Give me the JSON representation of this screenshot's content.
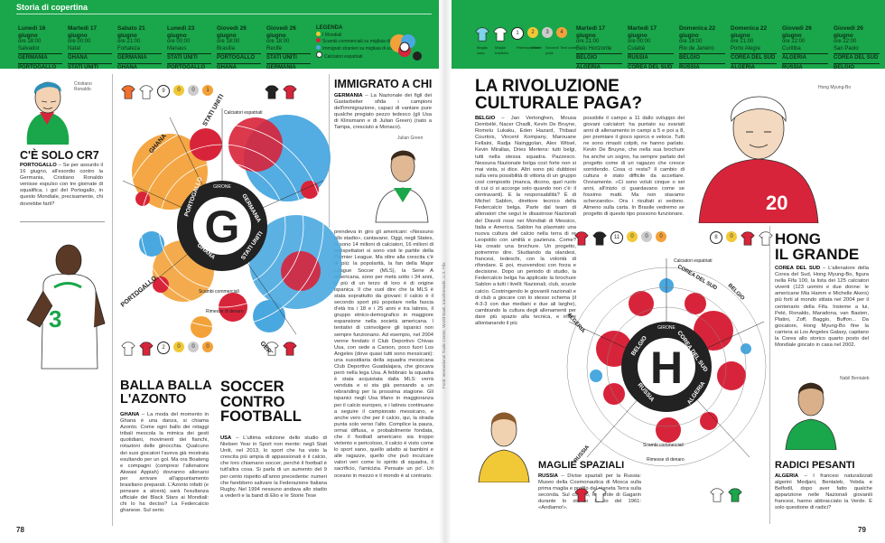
{
  "left_page": {
    "section": "Storia di copertina",
    "schedule": [
      {
        "date": "Lunedì 16 giugno",
        "time": "ore 18:00",
        "city": "Salvador",
        "team1": "GERMANIA",
        "team2": "PORTOGALLO"
      },
      {
        "date": "Martedì 17 giugno",
        "time": "ore 00:00",
        "city": "Natal",
        "team1": "GHANA",
        "team2": "STATI UNITI"
      },
      {
        "date": "Sabato 21 giugno",
        "time": "ore 21:00",
        "city": "Fortaleza",
        "team1": "GERMANIA",
        "team2": "GHANA"
      },
      {
        "date": "Lunedì 23 giugno",
        "time": "ore 00:00",
        "city": "Manaus",
        "team1": "STATI UNITI",
        "team2": "PORTOGALLO"
      },
      {
        "date": "Giovedì 26 giugno",
        "time": "ore 18:00",
        "city": "Brasília",
        "team1": "PORTOGALLO",
        "team2": "GHANA"
      },
      {
        "date": "Giovedì 26 giugno",
        "time": "ore 18:00",
        "city": "Recife",
        "team1": "STATI UNITI",
        "team2": "GERMANIA"
      }
    ],
    "legend": {
      "title": "LEGENDA",
      "items": [
        "I Mondiali",
        "Scambi commerciali su migliaia di euro",
        "Immigrati stranieri su migliaia di euro",
        "Calciatori espatriati"
      ]
    },
    "group": {
      "letter": "G",
      "ring_label": "GIRONE",
      "teams": [
        "PORTOGALLO",
        "GERMANIA",
        "STATI UNITI",
        "GHANA"
      ]
    },
    "chart_labels": {
      "spokes": [
        "STATI UNITI",
        "GHANA",
        "PORTOGALLO",
        "GERMANIA"
      ],
      "rings": [
        "Calciatori espatriati",
        "Scambi commerciali",
        "Rimesse di denaro"
      ]
    },
    "cr7": {
      "photo_label": "Cristiano Ronaldo",
      "title": "C'È SOLO CR7",
      "kicker": "PORTOGALLO",
      "text": "– Se per assurdo il 16 giugno, all'esordio contro la Germania, Cristiano Ronaldo venisse espulso con tre giornate di squalifica, i gol del Portogallo, in questo Mondiale, precisamente, chi dovrebbe farli?"
    },
    "immigrati": {
      "title": "IMMIGRATO A CHI",
      "kicker": "GERMANIA",
      "text": "– La Nazionale dei figli dei Gastarbeiter sfida i campioni dell'immigrazione, capaci di vantare pure qualche pregiato pezzo tedesco (gli Usa di Klinsmann e di Julian Green) (nato a Tampa, cresciuto a Monaco).",
      "photo_label": "Julian Green"
    },
    "soccer_col": {
      "text": "prendeva in giro gli americani: «Nessuno allo stadio», cantavano. Oggi, negli States, ci sono 14 milioni di calciatori, 16 milioni di telespettatori si sono visti le partite della Premier League. Ma oltre alla crescita c'è di più: la popolarità, la fan della Major League Soccer (MLS), la Serie A americana, sono per metà sotto i 34 anni, e più di un terzo di loro è di origine ispanica. Il che vuol dire che la MLS è stata soprattutto da giovani: il calcio è il secondo sport più popolare nella fascia d'età tra i 18 e i 25 anni e tra latinos, il gruppo etnico-demografico in maggiore espansione nella società americana. I tentativi di coinvolgere gli ispanici non sempre funzionano. Ad esempio, nel 2004 venne fondato il Club Deportivo Chivas Usa, con sede a Carson, poco fuori Los Angeles (dove quasi tutti sono messicani): una sussidiaria della squadra messicana Club Deportivo Guadalajara, che giocava però nella lega Usa. A febbraio la squadra è stata acquistata dalla MLS: verrà venduta e si sta già pensando a un rebranding per la prossima stagione. Gli ispanici negli Usa tifano in maggioranza per il calcio europeo, e i latinos continuano a seguire il campionato messicano, e anche vero che per il calcio, qui, la strada punta solo verso l'alto. Complice la paura, ormai diffusa, e probabilmente fondata, che il football americano sia troppo violento e pericoloso, il calcio è visto come lo sport sano, quello adatto ai bambini e alle ragazze, quello che può inculcare valori veri come lo spirito di squadra, il sacrificio, l'amicizia. Pensate un po'. Un oceano in mezzo e il mondo è al contrario."
    },
    "azonto": {
      "title_line1": "BALLA BALLA",
      "title_line2": "L'AZONTO",
      "kicker": "GHANA",
      "text": "– La moda del momento in Ghana è una danza, si chiama Azonto. Come ogni ballo dei retaggi tribali mescola la mimica dei gesti quotidiani, movimenti dei fianchi, rotazioni delle ginocchia. Qualcuno dei suoi giocatori l'aveva già mostrata esultando per un gol. Ma ora Boateng e compagni (compresi l'allenatore Akwasi Appiah) dovranno allenarsi per arrivare all'appuntamento brasiliano preparati. L'Azonto infatti (e pensare a alcerà) sarà l'esultanza ufficiale dei Black Stars ai Mondiali: chi lo ha deciso? La Federcalcio ghanese. Sul serio."
    },
    "soccer": {
      "title_line1": "SOCCER",
      "title_line2": "CONTRO",
      "title_line3": "FOOTBALL",
      "kicker": "USA",
      "text": "– L'ultima edizione dello studio di Nielsen Year in Sport non mente: negli Stati Uniti, nel 2013, lo sport che ha visto la crescita più ampia di appassionati è il calcio, che loro chiamano soccer, perché il football è tutt'altra cosa. Si parla di un aumento del 9 per cento rispetto all'anno precedente: numeri che farebbero salivare la Federazione Italiana Rugby. Nel 1994 nessuno andava allo stadio a vederli e la band di Elio e le Storie Tese"
    },
    "page_number": "78"
  },
  "right_page": {
    "schedule": [
      {
        "date": "Martedì 17 giugno",
        "time": "ore 21:00",
        "city": "Belo Horizonte",
        "team1": "BELGIO",
        "team2": "ALGERIA"
      },
      {
        "date": "Martedì 17 giugno",
        "time": "ore 00:00",
        "city": "Cuiabá",
        "team1": "RUSSIA",
        "team2": "COREA DEL SUD"
      },
      {
        "date": "Domenica 22 giugno",
        "time": "ore 18:00",
        "city": "Rio de Janeiro",
        "team1": "BELGIO",
        "team2": "RUSSIA"
      },
      {
        "date": "Domenica 22 giugno",
        "time": "ore 21:00",
        "city": "Porto Alegre",
        "team1": "COREA DEL SUD",
        "team2": "ALGERIA"
      },
      {
        "date": "Giovedì 26 giugno",
        "time": "ore 22:00",
        "city": "Curitiba",
        "team1": "ALGERIA",
        "team2": "RUSSIA"
      },
      {
        "date": "Giovedì 26 giugno",
        "time": "ore 22:00",
        "city": "San Paolo",
        "team1": "COREA DEL SUD",
        "team2": "BELGIO"
      }
    ],
    "kit_labels": [
      "Maglia casa",
      "Maglia trasferta",
      "Partecipazioni",
      "Vittorie",
      "Secondi posti",
      "Terzi posti"
    ],
    "group": {
      "letter": "H",
      "ring_label": "GIRONE",
      "teams": [
        "BELGIO",
        "COREA DEL SUD",
        "ALGERIA",
        "RUSSIA"
      ]
    },
    "chart_labels": {
      "spokes": [
        "COREA DEL SUD",
        "BELGIO",
        "ALGERIA",
        "RUSSIA"
      ],
      "rings": [
        "Calciatori espatriati",
        "Scambi commerciali",
        "Rimesse di denaro"
      ]
    },
    "rivoluzione": {
      "title_line1": "LA RIVOLUZIONE",
      "title_line2": "CULTURALE PAGA?",
      "kicker": "BELGIO",
      "text1": "– Jan Vertonghen, Mousa Dembélé, Nacer Chadli, Kevin De Bruyne, Romelu Lukaku, Eden Hazard, Thibaut Courtois, Vincent Kompany, Marouane Fellaini, Radja Nainggolan, Alex Witsel, Kevin Mirallas, Dries Mertens: tutti belgi, tutti nella stessa squadra. Pazzesco. Nessuna Nazionale belga così forte non si mai vista, si dice. Altri sono più dubbiosi sulla vera possibilità di vittoria di un gruppo così composito (manca, dicono, quel ruolo di cui ci si accorge solo quando non c'è: il centravanti). E la responsabilità? È di Michel Sablon, direttore tecnico della Federcalcio belga. Parte dal team di allenatori che seguì le disastrose Nazionali del Diavoli rossi nei Mondiali di Messico, Italia e America. Sablon ha plasmato una nuova cultura del calcio nella terra di re Leopoldo con umiltà e pazienza. Come? Ha creato una brochure. Un progetto, potremmo dire. Studiando da olandesi, francesi, tedeschi, con la volontà di rifondare. E poi, muovendosi con forza e decisione. Dopo un periodo di studio, la Federcalcio belga ha applicato la brochure Sablon a tutti i livelli: Nazionali, club, scuole calcio. Costringendo le giovanili nazionali e di club a giocare con lo stesso schema (il 4-3-3 con due mediani e due ali larghe), cambiando la cultura degli allenamenti per dare più spazio alla tecnica, e infine allontanando il più",
      "text2": "possibile il campo a 11 dallo sviluppo dei giovani calciatori: ha puntato su svariati anni di allenamento in campi a 5 e poi a 8, per premiare il gioco sporco e veloce. Tutti ne sono rimasti colpiti, ne hanno parlato. Kevin De Bruyne, che nella sua brochure ha anche un sogno, ha sempre parlato del progetto come di un ragazzo che cresce sorridendo. Cosa ci resta? Il cambio di cultura è stato difficile da accettare. Ovviamente. «Ci sono voluti cinque o sei anni, all'inizio ci guardavano come se fossimo matti. Ma non stavamo scherzando». Ora i risultati si vedono. Almeno sulla carta. In Brasile vedremo se progetto di questo tipo possono funzionare."
    },
    "hong": {
      "photo_label": "Hong Myung-Bo",
      "title_line1": "HONG",
      "title_line2": "IL GRANDE",
      "kicker": "COREA DEL SUD",
      "text": "– L'allenatore della Corea del Sud, Hong Myung-Bo, figura nella Fifa 100, la lista dei 125 calciatori viventi (123 uomini e due donne: le americane Mia Hamm e Michelle Akers) più forti al mondo stilata nel 2004 per il centenario della Fifa. Insieme a lui, Pelé, Ronaldo, Maradona, van Basten, Platini, Zoff, Baggio, Buffon... Da giocatore, Hong Myung-Bo fine la carriera ai Los Angeles Galaxy, capitano la Corea allo storico quarto posto del Mondiale giocato in casa nel 2002."
    },
    "maglie": {
      "title": "MAGLIE SPAZIALI",
      "kicker": "RUSSIA",
      "text": "– Divise spaziali per la Russia: Museo della Cosmonautica di Mosca sulla prima maglia e profilo del pianeta Terra sulla seconda. Sul colletto, le parole di Gagarin durante lo storico lancio del 1961: «Andiamo!»."
    },
    "radici": {
      "photo_label": "Nabil Bentaleb",
      "title": "RADICI PESANTI",
      "kicker": "ALGERIA",
      "text": "– I francesi naturalizzati algerini Medjani, Bentaleb, Yebda e Belfodil, dopo aver fatto qualche apparizione nelle Nazionali giovanili francesi, hanno abbracciato la Verde. È solo questione di radici?"
    },
    "credit": "Fonti: International Trade Centre, World Bank, transfermarkt, U.S. Fifa",
    "page_number": "79"
  },
  "colors": {
    "green": "#1aa64a",
    "orange": "#f3a23a",
    "blue": "#4aa8e0",
    "red": "#d8243a",
    "yellow": "#f1c836"
  }
}
